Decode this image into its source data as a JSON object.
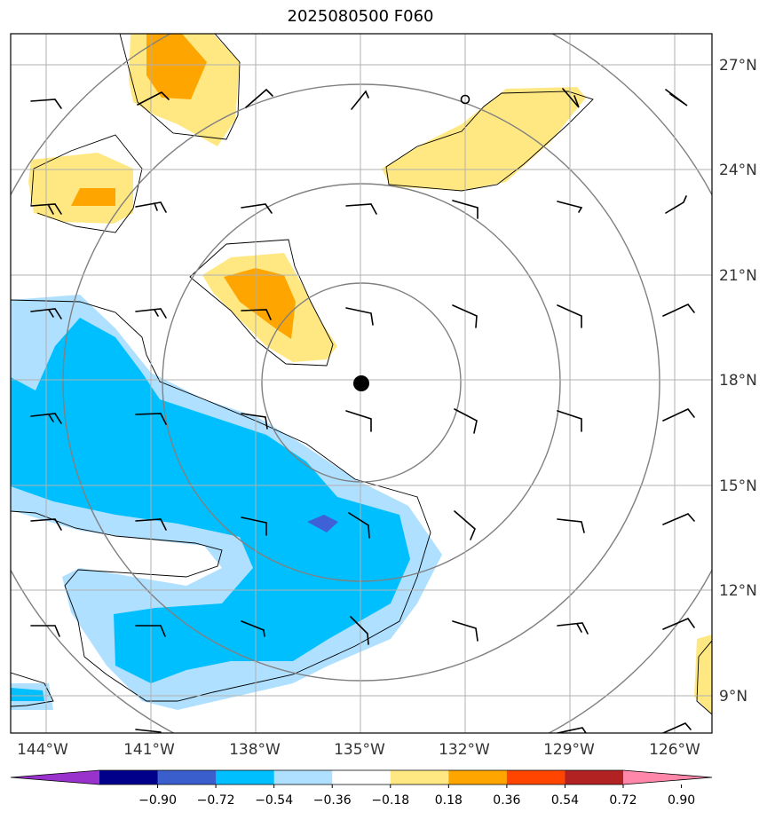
{
  "title": "2025080500 F060",
  "map": {
    "lon_labels": [
      "144°W",
      "141°W",
      "138°W",
      "135°W",
      "132°W",
      "129°W",
      "126°W"
    ],
    "lat_labels": [
      "27°N",
      "24°N",
      "21°N",
      "18°N",
      "15°N",
      "12°N",
      "9°N"
    ],
    "center_marker": "storm-center"
  },
  "colorbar": {
    "tick_labels": [
      "−0.90",
      "−0.72",
      "−0.54",
      "−0.36",
      "−0.18",
      "0.18",
      "0.36",
      "0.54",
      "0.72",
      "0.90"
    ],
    "colors": [
      "#9932cc",
      "#00008b",
      "#3a5fcd",
      "#00bfff",
      "#b0e0ff",
      "#ffffff",
      "#ffe882",
      "#ffa500",
      "#ff4500",
      "#b22222",
      "#ff88aa"
    ]
  },
  "fill_colors": {
    "light_yellow": "#ffe882",
    "orange": "#ffa500",
    "light_blue": "#b0e0ff",
    "blue": "#00bfff",
    "royal_blue": "#4060d8"
  }
}
